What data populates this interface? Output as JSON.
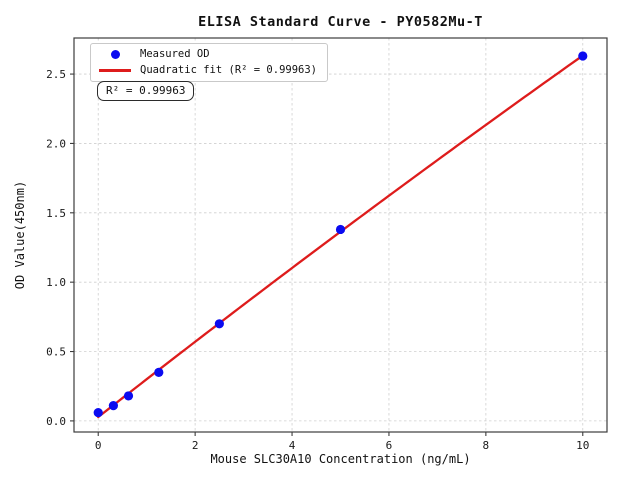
{
  "chart": {
    "title": "ELISA Standard Curve - PY0582Mu-T",
    "xlabel": "Mouse SLC30A10 Concentration (ng/mL)",
    "ylabel": "OD Value(450nm)",
    "legend": {
      "measured_label": "Measured OD",
      "fit_label": "Quadratic fit (R² = 0.99963)"
    },
    "annotation_text": "R² = 0.99963"
  },
  "chart_data": {
    "type": "scatter",
    "title": "ELISA Standard Curve - PY0582Mu-T",
    "xlabel": "Mouse SLC30A10 Concentration (ng/mL)",
    "ylabel": "OD Value(450nm)",
    "series": [
      {
        "name": "Measured OD",
        "type": "scatter",
        "marker": "circle",
        "color": "#0b0bf0",
        "x": [
          0,
          0.313,
          0.625,
          1.25,
          2.5,
          5,
          10
        ],
        "y": [
          0.06,
          0.11,
          0.18,
          0.35,
          0.7,
          1.38,
          2.63
        ]
      },
      {
        "name": "Quadratic fit (R² = 0.99963)",
        "type": "quadratic-fit",
        "fit_of": "Measured OD",
        "color": "#de1c1c",
        "x_range": [
          0,
          10
        ],
        "r_squared": 0.99963
      }
    ],
    "r_squared": 0.99963,
    "xlim": [
      -0.5,
      10.5
    ],
    "ylim": [
      -0.08,
      2.76
    ],
    "xticks": [
      0,
      2,
      4,
      6,
      8,
      10
    ],
    "xtick_labels": [
      "0",
      "2",
      "4",
      "6",
      "8",
      "10"
    ],
    "yticks": [
      0,
      0.5,
      1,
      1.5,
      2,
      2.5
    ],
    "ytick_labels": [
      "0.0",
      "0.5",
      "1.0",
      "1.5",
      "2.0",
      "2.5"
    ],
    "grid": true,
    "grid_color": "#cfcfcf",
    "spine_color": "#3c3c3c",
    "tick_label_color": "#1a1a1a",
    "legend_position": "upper left",
    "annotation": "R² = 0.99963"
  }
}
